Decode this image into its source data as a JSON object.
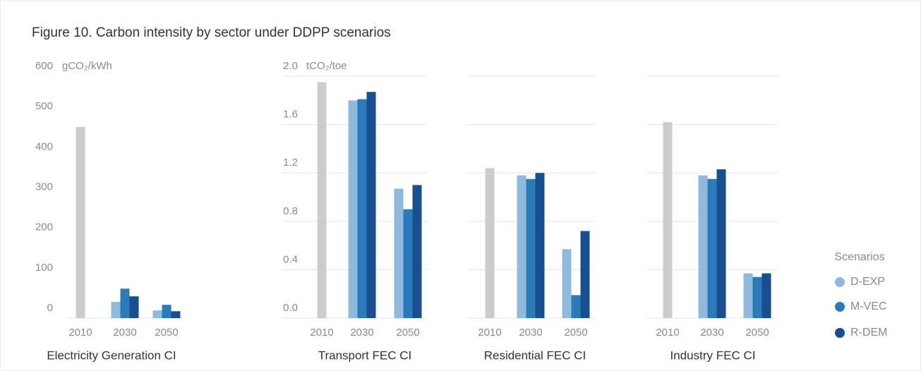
{
  "title": "Figure 10. Carbon intensity by sector under DDPP scenarios",
  "legend": {
    "title": "Scenarios",
    "position": "right"
  },
  "chart_data": [
    {
      "type": "bar",
      "title": "Electricity Generation CI",
      "ylabel": "gCO₂/kWh",
      "categories": [
        "2010",
        "2030",
        "2050"
      ],
      "values": [
        474,
        null,
        null
      ],
      "color": "#cccccc",
      "series": [
        {
          "name": "D-EXP",
          "color": "#8fb9dd",
          "values": [
            null,
            40,
            19
          ]
        },
        {
          "name": "M-VEC",
          "color": "#2b7bba",
          "values": [
            null,
            73,
            33
          ]
        },
        {
          "name": "R-DEM",
          "color": "#1a4f8f",
          "values": [
            null,
            54,
            17
          ]
        }
      ],
      "ylim": [
        0,
        600
      ],
      "yticks": [
        0,
        100,
        200,
        300,
        400,
        500,
        600
      ],
      "grid": false,
      "show_tick_labels": true
    },
    {
      "type": "bar",
      "title": "Transport FEC CI",
      "ylabel": "tCO₂/toe",
      "categories": [
        "2010",
        "2030",
        "2050"
      ],
      "values": [
        1.95,
        null,
        null
      ],
      "color": "#cccccc",
      "series": [
        {
          "name": "D-EXP",
          "color": "#8fb9dd",
          "values": [
            null,
            1.8,
            1.07
          ]
        },
        {
          "name": "M-VEC",
          "color": "#2b7bba",
          "values": [
            null,
            1.81,
            0.9
          ]
        },
        {
          "name": "R-DEM",
          "color": "#1a4f8f",
          "values": [
            null,
            1.87,
            1.1
          ]
        }
      ],
      "ylim": [
        0,
        2
      ],
      "yticks": [
        {
          "value": 0,
          "label": "0.0"
        },
        0.4,
        0.8,
        1.2,
        1.6,
        {
          "value": 2,
          "label": "2.0"
        }
      ],
      "grid": true,
      "show_tick_labels": true
    },
    {
      "type": "bar",
      "title": "Residential FEC CI",
      "categories": [
        "2010",
        "2030",
        "2050"
      ],
      "values": [
        1.24,
        null,
        null
      ],
      "color": "#cccccc",
      "series": [
        {
          "name": "D-EXP",
          "color": "#8fb9dd",
          "values": [
            null,
            1.18,
            0.57
          ]
        },
        {
          "name": "M-VEC",
          "color": "#2b7bba",
          "values": [
            null,
            1.15,
            0.19
          ]
        },
        {
          "name": "R-DEM",
          "color": "#1a4f8f",
          "values": [
            null,
            1.2,
            0.72
          ]
        }
      ],
      "ylim": [
        0,
        2
      ],
      "yticks": [
        0,
        0.4,
        0.8,
        1.2,
        1.6,
        2
      ],
      "grid": true,
      "show_tick_labels": false
    },
    {
      "type": "bar",
      "title": "Industry FEC CI",
      "categories": [
        "2010",
        "2030",
        "2050"
      ],
      "values": [
        1.62,
        null,
        null
      ],
      "color": "#cccccc",
      "series": [
        {
          "name": "D-EXP",
          "color": "#8fb9dd",
          "values": [
            null,
            1.18,
            0.37
          ]
        },
        {
          "name": "M-VEC",
          "color": "#2b7bba",
          "values": [
            null,
            1.15,
            0.34
          ]
        },
        {
          "name": "R-DEM",
          "color": "#1a4f8f",
          "values": [
            null,
            1.23,
            0.37
          ]
        }
      ],
      "ylim": [
        0,
        2
      ],
      "yticks": [
        0,
        0.4,
        0.8,
        1.2,
        1.6,
        2
      ],
      "grid": true,
      "show_tick_labels": false
    }
  ]
}
